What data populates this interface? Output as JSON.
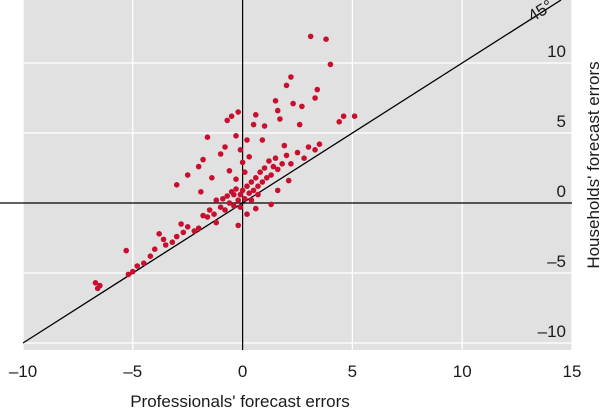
{
  "chart_data": {
    "type": "scatter",
    "title": "",
    "xlabel": "Professionals' forecast errors",
    "ylabel": "Households' forecast errors",
    "xlim": [
      -10,
      15
    ],
    "ylim": [
      -10.5,
      14.5
    ],
    "x_ticks": [
      "–10",
      "–5",
      "0",
      "5",
      "10",
      "15"
    ],
    "y_ticks": [
      "10",
      "5",
      "0",
      "–5",
      "–10"
    ],
    "reference_line": {
      "label": "45°",
      "slope": 1,
      "intercept": 0
    },
    "grid": true,
    "colors": {
      "background": "#e1e1e1",
      "grid": "#ffffff",
      "points": "#c8102e",
      "axes": "#000000"
    },
    "series": [
      {
        "points": [
          [
            -6.7,
            -5.7
          ],
          [
            -6.6,
            -6.1
          ],
          [
            -6.5,
            -5.9
          ],
          [
            -5.2,
            -5.1
          ],
          [
            -5.0,
            -4.9
          ],
          [
            -5.3,
            -3.4
          ],
          [
            -4.8,
            -4.5
          ],
          [
            -4.5,
            -4.3
          ],
          [
            -4.2,
            -3.8
          ],
          [
            -4.0,
            -3.3
          ],
          [
            -3.8,
            -2.2
          ],
          [
            -3.5,
            -3.0
          ],
          [
            -3.2,
            -2.8
          ],
          [
            -3.0,
            -2.4
          ],
          [
            -2.8,
            -1.5
          ],
          [
            -2.5,
            -1.7
          ],
          [
            -2.2,
            -2.0
          ],
          [
            -2.0,
            -1.8
          ],
          [
            -1.8,
            -0.9
          ],
          [
            -1.6,
            -1.0
          ],
          [
            -1.5,
            -0.5
          ],
          [
            -1.3,
            -0.8
          ],
          [
            -1.2,
            0.2
          ],
          [
            -1.0,
            -0.3
          ],
          [
            -0.9,
            0.3
          ],
          [
            -0.8,
            -0.5
          ],
          [
            -0.7,
            0.5
          ],
          [
            -0.6,
            0.0
          ],
          [
            -0.5,
            0.8
          ],
          [
            -0.4,
            -0.2
          ],
          [
            -0.3,
            1.0
          ],
          [
            -0.2,
            0.2
          ],
          [
            -0.1,
            0.6
          ],
          [
            0.0,
            0.9
          ],
          [
            0.1,
            0.3
          ],
          [
            0.2,
            1.2
          ],
          [
            0.3,
            0.7
          ],
          [
            0.4,
            1.5
          ],
          [
            0.5,
            0.9
          ],
          [
            0.6,
            1.8
          ],
          [
            0.7,
            1.2
          ],
          [
            0.8,
            2.2
          ],
          [
            0.9,
            1.5
          ],
          [
            1.0,
            2.5
          ],
          [
            1.1,
            1.8
          ],
          [
            1.2,
            3.0
          ],
          [
            1.3,
            2.0
          ],
          [
            1.4,
            2.6
          ],
          [
            1.5,
            3.2
          ],
          [
            1.6,
            2.4
          ],
          [
            1.8,
            2.8
          ],
          [
            2.0,
            3.4
          ],
          [
            2.2,
            2.8
          ],
          [
            2.5,
            3.6
          ],
          [
            2.8,
            3.2
          ],
          [
            3.0,
            4.0
          ],
          [
            3.3,
            3.8
          ],
          [
            3.5,
            4.2
          ],
          [
            3.1,
            11.9
          ],
          [
            3.8,
            11.7
          ],
          [
            4.0,
            9.9
          ],
          [
            3.4,
            8.1
          ],
          [
            2.2,
            9.0
          ],
          [
            2.0,
            8.4
          ],
          [
            2.3,
            7.1
          ],
          [
            1.5,
            7.3
          ],
          [
            1.6,
            6.6
          ],
          [
            1.0,
            5.5
          ],
          [
            0.6,
            6.3
          ],
          [
            0.5,
            5.6
          ],
          [
            0.2,
            4.5
          ],
          [
            -0.2,
            6.5
          ],
          [
            -0.5,
            6.2
          ],
          [
            -0.7,
            5.9
          ],
          [
            -0.3,
            4.8
          ],
          [
            -0.8,
            4.0
          ],
          [
            -1.0,
            3.5
          ],
          [
            -1.6,
            4.7
          ],
          [
            -1.8,
            3.1
          ],
          [
            -2.0,
            2.6
          ],
          [
            -2.5,
            2.0
          ],
          [
            -3.0,
            1.3
          ],
          [
            -0.6,
            2.3
          ],
          [
            -0.3,
            1.7
          ],
          [
            0.0,
            2.9
          ],
          [
            0.3,
            3.3
          ],
          [
            2.6,
            5.6
          ],
          [
            3.3,
            7.5
          ],
          [
            4.6,
            6.2
          ],
          [
            4.4,
            5.8
          ],
          [
            5.1,
            6.2
          ],
          [
            -0.1,
            3.8
          ],
          [
            0.1,
            2.2
          ],
          [
            0.4,
            0.2
          ],
          [
            0.7,
            0.6
          ],
          [
            -0.4,
            0.6
          ],
          [
            -0.2,
            -1.6
          ],
          [
            0.2,
            -0.8
          ],
          [
            1.6,
            0.9
          ],
          [
            2.1,
            1.6
          ],
          [
            1.3,
            -0.1
          ],
          [
            -1.4,
            1.8
          ],
          [
            1.7,
            6.0
          ],
          [
            2.7,
            6.9
          ],
          [
            0.9,
            4.5
          ],
          [
            1.9,
            4.1
          ],
          [
            -0.1,
            -0.3
          ],
          [
            0.6,
            -0.4
          ],
          [
            -1.2,
            -1.4
          ],
          [
            -2.7,
            -2.1
          ],
          [
            -3.6,
            -2.6
          ],
          [
            -1.9,
            0.8
          ]
        ]
      }
    ]
  }
}
